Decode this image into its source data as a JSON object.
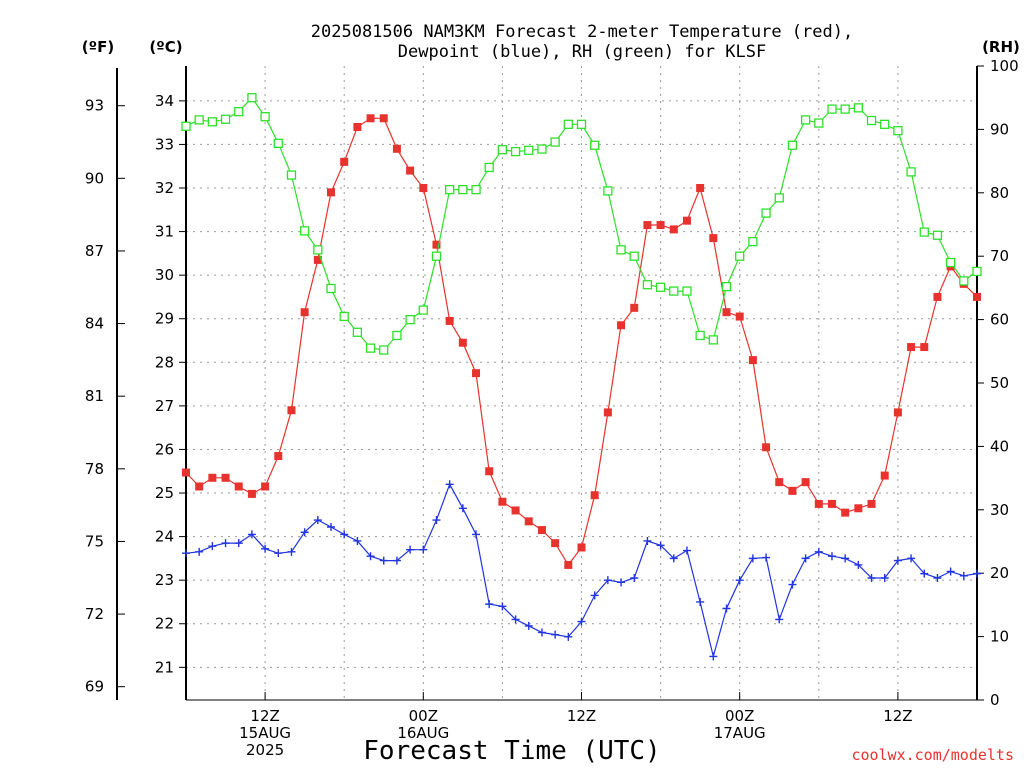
{
  "chart_data": {
    "type": "line",
    "title_lines": [
      "2025081506 NAM3KM Forecast 2-meter Temperature (red),",
      "Dewpoint (blue), RH (green) for KLSF"
    ],
    "xlabel": "Forecast Time (UTC)",
    "units": {
      "fahrenheit": "(ºF)",
      "celsius": "(ºC)",
      "rh": "(RH)"
    },
    "credit": "coolwx.com/modelts",
    "x_ticks": [
      {
        "hour": 12,
        "lines": [
          "12Z",
          "15AUG",
          "2025"
        ]
      },
      {
        "hour": 24,
        "lines": [
          "00Z",
          "16AUG"
        ]
      },
      {
        "hour": 36,
        "lines": [
          "12Z"
        ]
      },
      {
        "hour": 48,
        "lines": [
          "00Z",
          "17AUG"
        ]
      },
      {
        "hour": 60,
        "lines": [
          "12Z"
        ]
      }
    ],
    "x_range_hours": [
      6,
      66
    ],
    "celsius_axis": {
      "range": [
        20.25,
        34.8
      ],
      "ticks": [
        21,
        22,
        23,
        24,
        25,
        26,
        27,
        28,
        29,
        30,
        31,
        32,
        33,
        34
      ]
    },
    "fahrenheit_axis": {
      "range": [
        68.45,
        94.64
      ],
      "ticks": [
        69,
        72,
        75,
        78,
        81,
        84,
        87,
        90,
        93
      ]
    },
    "rh_axis": {
      "range": [
        0,
        100
      ],
      "ticks": [
        0,
        10,
        20,
        30,
        40,
        50,
        60,
        70,
        80,
        90,
        100
      ]
    },
    "grid": true,
    "series": [
      {
        "name": "Temperature",
        "color": "#e8322e",
        "marker": "filled-square",
        "axis": "celsius",
        "x": [
          6,
          7,
          8,
          9,
          10,
          11,
          12,
          13,
          14,
          15,
          16,
          17,
          18,
          19,
          20,
          21,
          22,
          23,
          24,
          25,
          26,
          27,
          28,
          29,
          30,
          31,
          32,
          33,
          34,
          35,
          36,
          37,
          38,
          39,
          40,
          41,
          42,
          43,
          44,
          45,
          46,
          47,
          48,
          49,
          50,
          51,
          52,
          53,
          54,
          55,
          56,
          57,
          58,
          59,
          60,
          61,
          62,
          63,
          64,
          65,
          66
        ],
        "values": [
          25.47,
          25.15,
          25.35,
          25.35,
          25.15,
          24.98,
          25.15,
          25.85,
          26.9,
          29.15,
          30.35,
          31.9,
          32.6,
          33.4,
          33.6,
          33.6,
          32.9,
          32.4,
          32.0,
          30.7,
          28.95,
          28.45,
          27.75,
          25.5,
          24.8,
          24.6,
          24.35,
          24.15,
          23.85,
          23.35,
          23.75,
          24.95,
          26.85,
          28.85,
          29.25,
          31.15,
          31.15,
          31.05,
          31.25,
          32.0,
          30.85,
          29.15,
          29.05,
          28.05,
          26.05,
          25.25,
          25.05,
          25.25,
          24.75,
          24.75,
          24.55,
          24.65,
          24.75,
          25.4,
          26.85,
          28.35,
          28.35,
          29.5,
          30.2,
          29.8,
          29.5
        ]
      },
      {
        "name": "Dewpoint",
        "color": "#2034e0",
        "marker": "plus",
        "axis": "celsius",
        "x": [
          6,
          7,
          8,
          9,
          10,
          11,
          12,
          13,
          14,
          15,
          16,
          17,
          18,
          19,
          20,
          21,
          22,
          23,
          24,
          25,
          26,
          27,
          28,
          29,
          30,
          31,
          32,
          33,
          34,
          35,
          36,
          37,
          38,
          39,
          40,
          41,
          42,
          43,
          44,
          45,
          46,
          47,
          48,
          49,
          50,
          51,
          52,
          53,
          54,
          55,
          56,
          57,
          58,
          59,
          60,
          61,
          62,
          63,
          64,
          65,
          66
        ],
        "values": [
          23.62,
          23.65,
          23.78,
          23.85,
          23.85,
          24.05,
          23.72,
          23.62,
          23.65,
          24.1,
          24.38,
          24.22,
          24.05,
          23.9,
          23.55,
          23.45,
          23.45,
          23.7,
          23.7,
          24.38,
          25.2,
          24.65,
          24.05,
          22.45,
          22.4,
          22.1,
          21.95,
          21.8,
          21.75,
          21.7,
          22.05,
          22.65,
          23.0,
          22.95,
          23.05,
          23.9,
          23.8,
          23.5,
          23.68,
          22.5,
          21.25,
          22.35,
          23.0,
          23.5,
          23.52,
          22.1,
          22.9,
          23.5,
          23.65,
          23.55,
          23.5,
          23.35,
          23.05,
          23.05,
          23.45,
          23.5,
          23.15,
          23.05,
          23.2,
          23.1,
          23.15
        ]
      },
      {
        "name": "RH",
        "color": "#2ee02a",
        "marker": "open-square",
        "axis": "rh",
        "x": [
          6,
          7,
          8,
          9,
          10,
          11,
          12,
          13,
          14,
          15,
          16,
          17,
          18,
          19,
          20,
          21,
          22,
          23,
          24,
          25,
          26,
          27,
          28,
          29,
          30,
          31,
          32,
          33,
          34,
          35,
          36,
          37,
          38,
          39,
          40,
          41,
          42,
          43,
          44,
          45,
          46,
          47,
          48,
          49,
          50,
          51,
          52,
          53,
          54,
          55,
          56,
          57,
          58,
          59,
          60,
          61,
          62,
          63,
          64,
          65,
          66
        ],
        "values": [
          90.5,
          91.5,
          91.2,
          91.6,
          92.8,
          95.0,
          92.0,
          87.8,
          82.8,
          74.0,
          71.0,
          64.9,
          60.5,
          58.0,
          55.5,
          55.2,
          57.5,
          60.0,
          61.5,
          70.0,
          80.5,
          80.5,
          80.5,
          84.0,
          86.8,
          86.5,
          86.7,
          86.9,
          88.0,
          90.8,
          90.8,
          87.5,
          80.3,
          71.0,
          70.0,
          65.5,
          65.1,
          64.5,
          64.5,
          57.5,
          56.8,
          65.2,
          70.0,
          72.3,
          76.8,
          79.2,
          87.5,
          91.5,
          91.0,
          93.2,
          93.2,
          93.4,
          91.4,
          90.8,
          89.8,
          83.3,
          73.8,
          73.3,
          69.0,
          66.1,
          67.6
        ]
      }
    ]
  }
}
